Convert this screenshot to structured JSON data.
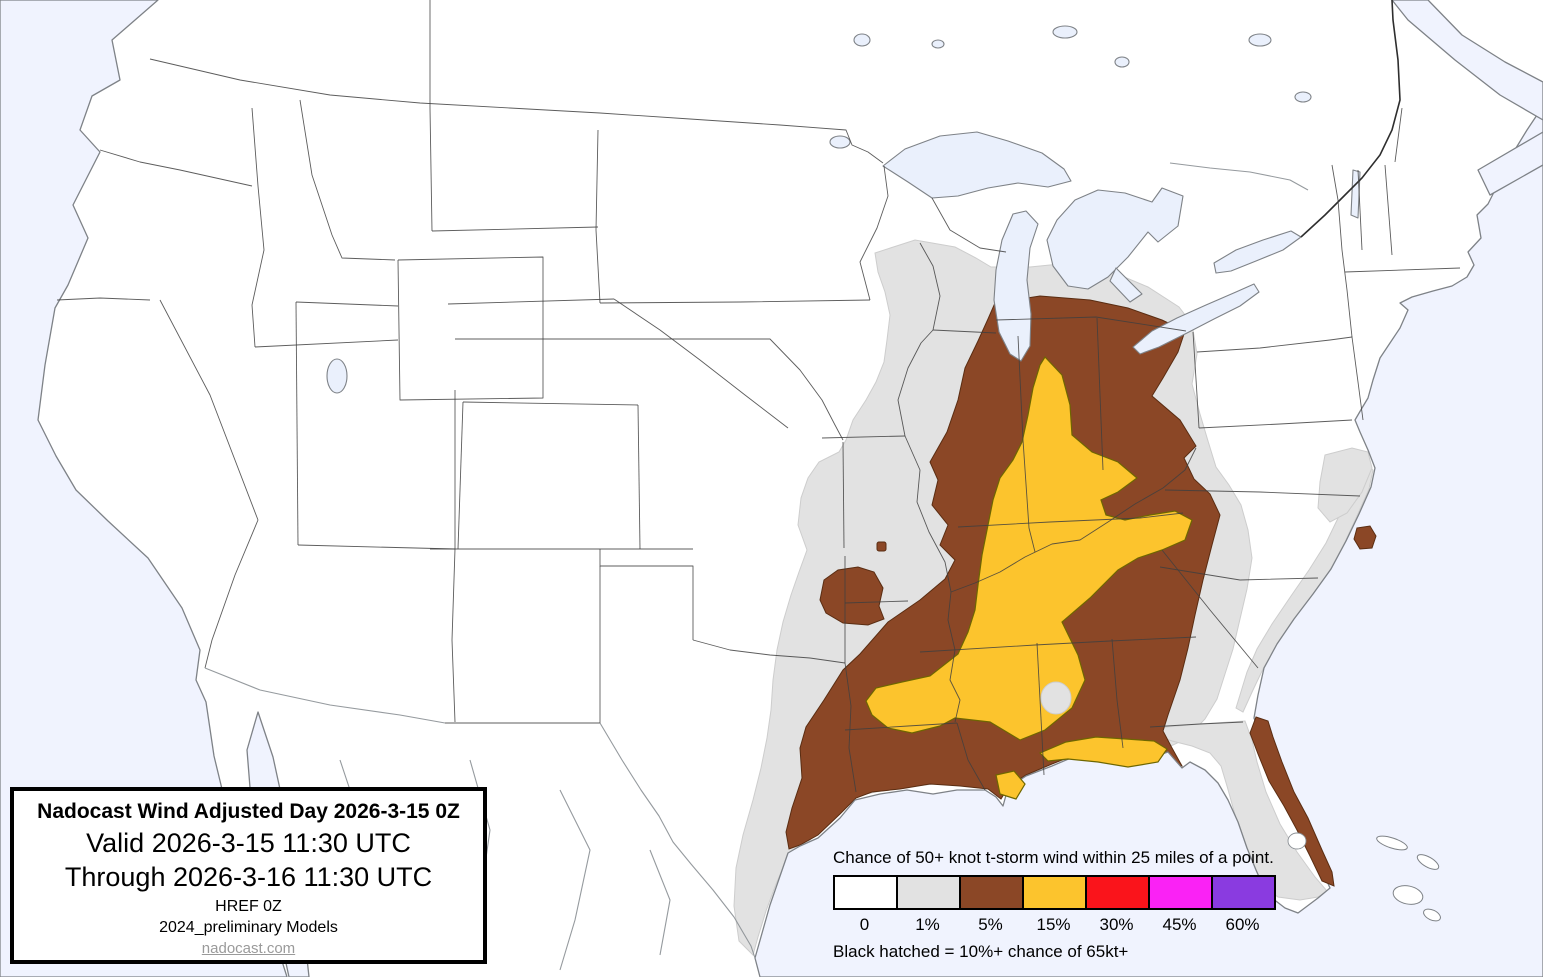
{
  "title_box": {
    "line1": "Nadocast Wind Adjusted Day 2026-3-15 0Z",
    "line2": "Valid 2026-3-15 11:30 UTC",
    "line3": "Through 2026-3-16 11:30 UTC",
    "line4": "HREF 0Z",
    "line5": "2024_preliminary Models",
    "link": "nadocast.com"
  },
  "legend": {
    "title": "Chance of 50+ knot t-storm wind within 25 miles of a point.",
    "note": "Black hatched = 10%+ chance of 65kt+",
    "swatches": [
      {
        "label": "0",
        "color": "#FFFFFF"
      },
      {
        "label": "1%",
        "color": "#E2E2E2"
      },
      {
        "label": "5%",
        "color": "#8B4726"
      },
      {
        "label": "15%",
        "color": "#FCC42D"
      },
      {
        "label": "30%",
        "color": "#FA141B"
      },
      {
        "label": "45%",
        "color": "#FA22F5"
      },
      {
        "label": "60%",
        "color": "#8A3BE0"
      }
    ]
  },
  "map": {
    "water_color": "#F0F3FE",
    "land_color": "#FFFFFF",
    "risk_regions": [
      {
        "name": "1% chance area",
        "color": "#E2E2E2"
      },
      {
        "name": "5% chance area",
        "color": "#8B4726"
      },
      {
        "name": "15% chance area",
        "color": "#FCC42D"
      }
    ]
  }
}
